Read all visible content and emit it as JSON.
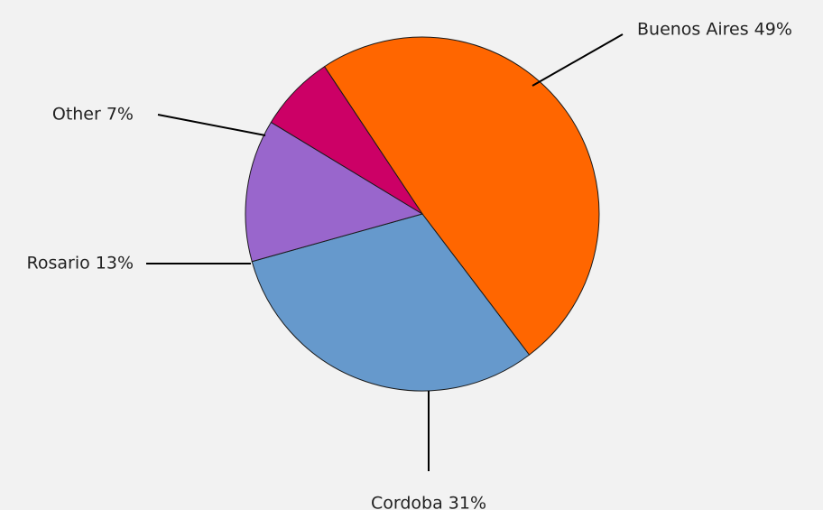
{
  "chart_data": {
    "type": "pie",
    "slices": [
      {
        "label": "Buenos Aires",
        "value": 49,
        "display": "Buenos Aires 49%",
        "color": "#ff6600"
      },
      {
        "label": "Cordoba",
        "value": 31,
        "display": "Cordoba 31%",
        "color": "#6699cc"
      },
      {
        "label": "Rosario",
        "value": 13,
        "display": "Rosario 13%",
        "color": "#9966cc"
      },
      {
        "label": "Other",
        "value": 7,
        "display": "Other 7%",
        "color": "#cc0066"
      }
    ],
    "background": "#f2f2f2",
    "labels": "outside with leader lines",
    "legend": "none",
    "start_angle": "upper-left, clockwise"
  }
}
